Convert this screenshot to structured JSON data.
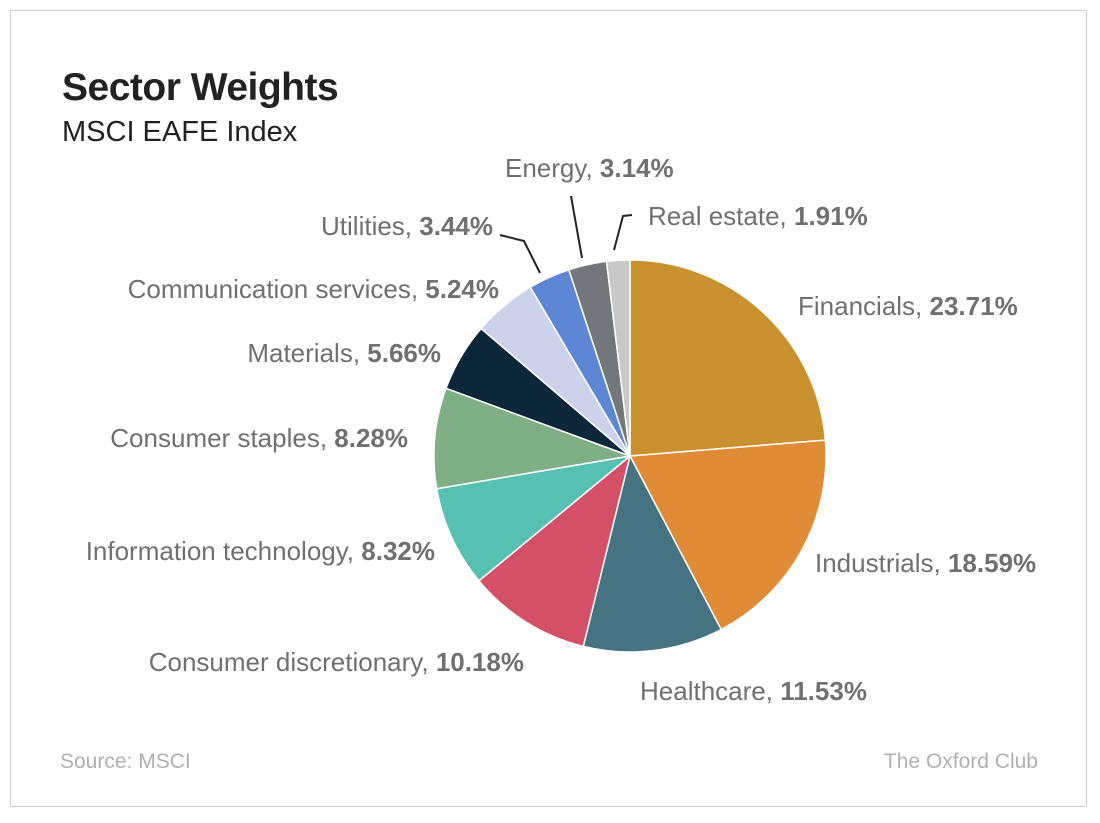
{
  "chart_data": {
    "type": "pie",
    "title": "Sector Weights",
    "subtitle": "MSCI EAFE Index",
    "start_angle": "12 o'clock, clockwise",
    "slices": [
      {
        "label": "Financials",
        "value": 23.71,
        "display": "23.71%",
        "color": "#C9922E"
      },
      {
        "label": "Industrials",
        "value": 18.59,
        "display": "18.59%",
        "color": "#E08B35"
      },
      {
        "label": "Healthcare",
        "value": 11.53,
        "display": "11.53%",
        "color": "#457382"
      },
      {
        "label": "Consumer discretionary",
        "value": 10.18,
        "display": "10.18%",
        "color": "#D45067"
      },
      {
        "label": "Information technology",
        "value": 8.32,
        "display": "8.32%",
        "color": "#56C1B2"
      },
      {
        "label": "Consumer staples",
        "value": 8.28,
        "display": "8.28%",
        "color": "#7FAF84"
      },
      {
        "label": "Materials",
        "value": 5.66,
        "display": "5.66%",
        "color": "#0C2739"
      },
      {
        "label": "Communication services",
        "value": 5.24,
        "display": "5.24%",
        "color": "#CBD2EA"
      },
      {
        "label": "Utilities",
        "value": 3.44,
        "display": "3.44%",
        "color": "#5D86D5"
      },
      {
        "label": "Energy",
        "value": 3.14,
        "display": "3.14%",
        "color": "#73777C"
      },
      {
        "label": "Real estate",
        "value": 1.91,
        "display": "1.91%",
        "color": "#C8C8C8"
      }
    ]
  },
  "footer": {
    "source": "Source: MSCI",
    "brand": "The Oxford Club"
  }
}
